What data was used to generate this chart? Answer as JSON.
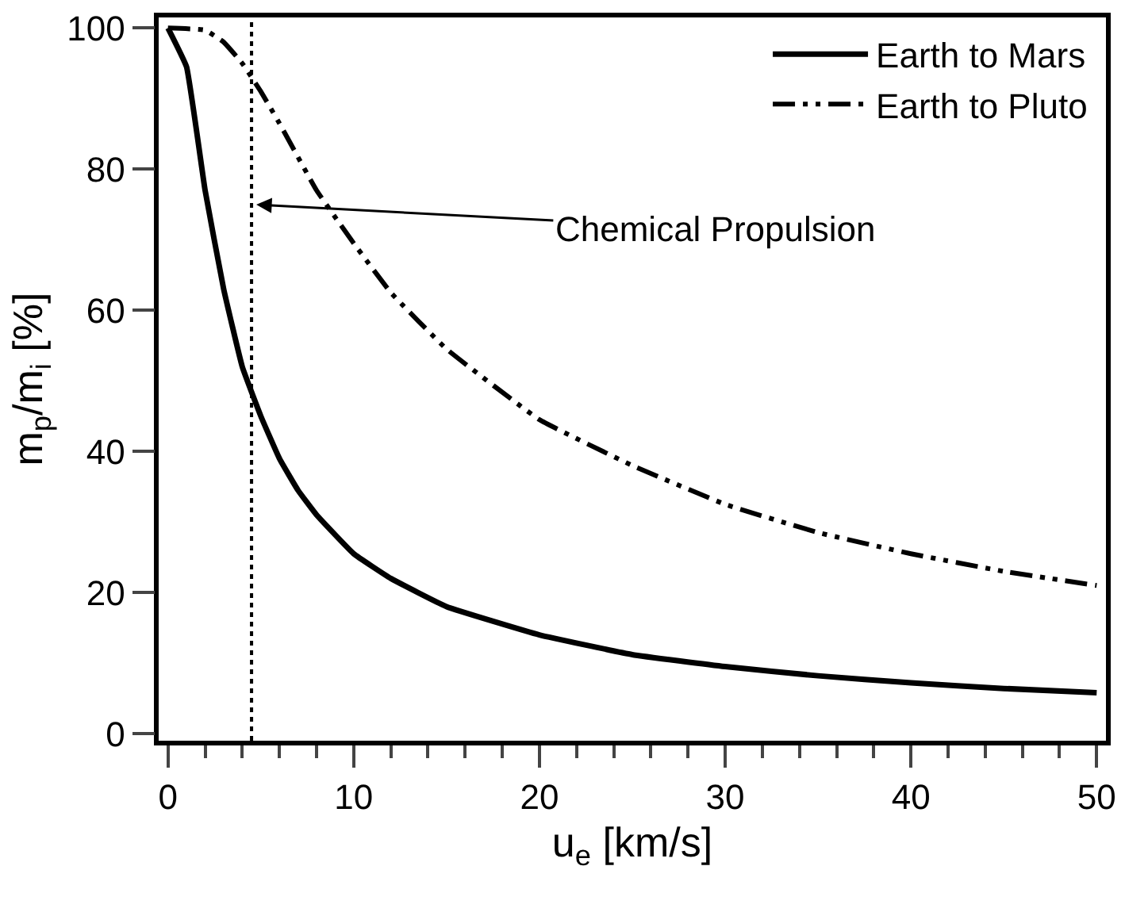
{
  "chart_data": {
    "type": "line",
    "xlabel": "u$_{e}$ [km/s]",
    "ylabel": "m$_{p}$/m$_{i}$ [%]",
    "xlim": [
      -0.5,
      50.5
    ],
    "ylim": [
      -1,
      101.5
    ],
    "xticks": [
      0,
      10,
      20,
      30,
      40,
      50
    ],
    "yticks": [
      0,
      20,
      40,
      60,
      80,
      100
    ],
    "legend": "top right",
    "marker": "none",
    "series": [
      {
        "name": "Earth to Mars",
        "color": "#000000",
        "line_style": "solid",
        "x": [
          0,
          1,
          2,
          3,
          4,
          5,
          6,
          7,
          8,
          10,
          12,
          15,
          20,
          25,
          30,
          35,
          40,
          45,
          50
        ],
        "values": [
          100,
          94.5,
          77,
          63,
          52,
          45,
          39,
          34.5,
          31,
          25.5,
          22,
          18,
          14,
          11.2,
          9.5,
          8.2,
          7.2,
          6.4,
          5.8
        ]
      },
      {
        "name": "Earth to Pluto",
        "color": "#000000",
        "line_style": "dashed",
        "x": [
          0,
          2,
          3,
          4,
          5,
          6,
          8,
          10,
          12,
          15,
          20,
          25,
          30,
          35,
          40,
          45,
          50
        ],
        "values": [
          100,
          99.7,
          98,
          95,
          91,
          86.5,
          77,
          69.5,
          62.5,
          54.5,
          44.5,
          38,
          32.5,
          28.5,
          25.5,
          23,
          21
        ]
      }
    ],
    "ref_lines": [
      {
        "axis": "x",
        "value": 4.5,
        "label": null,
        "line_style": "dotted",
        "color": "#000000"
      }
    ],
    "annotations": [
      {
        "text": "Chemical Propulsion",
        "x": 4.5,
        "y": 75
      }
    ]
  }
}
